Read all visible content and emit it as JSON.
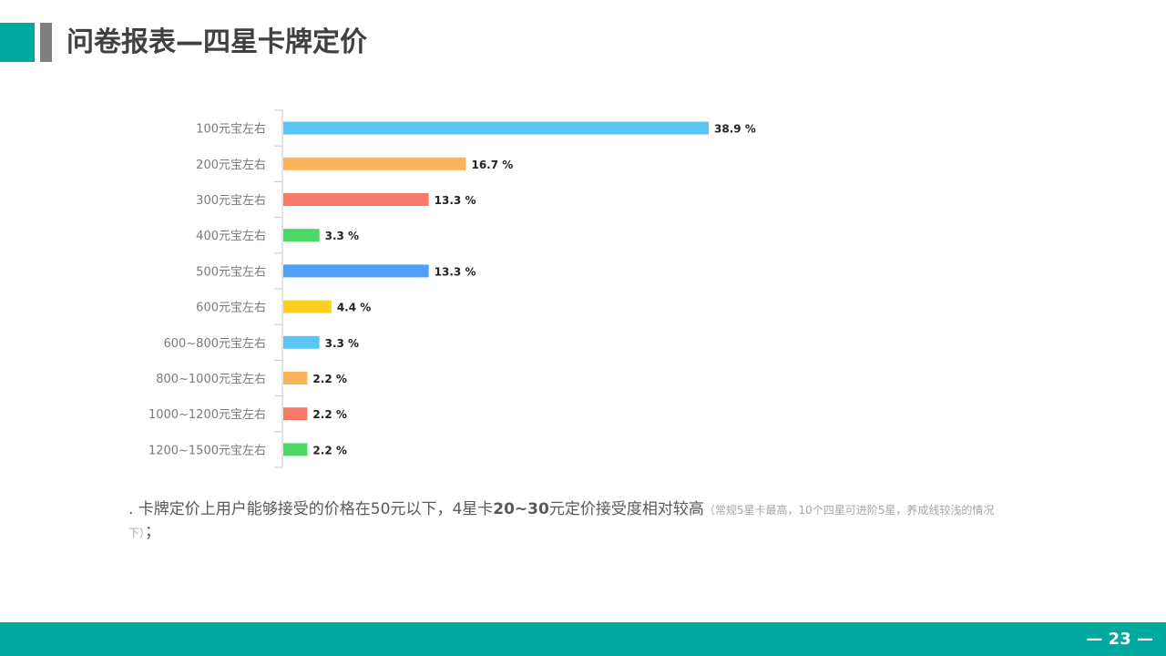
{
  "header": {
    "title": "问卷报表—四星卡牌定价"
  },
  "chart_data": {
    "type": "bar",
    "orientation": "horizontal",
    "categories": [
      "100元宝左右",
      "200元宝左右",
      "300元宝左右",
      "400元宝左右",
      "500元宝左右",
      "600元宝左右",
      "600~800元宝左右",
      "800~1000元宝左右",
      "1000~1200元宝左右",
      "1200~1500元宝左右"
    ],
    "values": [
      38.9,
      16.7,
      13.3,
      3.3,
      13.3,
      4.4,
      3.3,
      2.2,
      2.2,
      2.2
    ],
    "value_labels": [
      "38.9 %",
      "16.7 %",
      "13.3 %",
      "3.3 %",
      "13.3 %",
      "4.4 %",
      "3.3 %",
      "2.2 %",
      "2.2 %",
      "2.2 %"
    ],
    "colors": [
      "#5bc5f7",
      "#fbb35a",
      "#fa7a6a",
      "#4bd865",
      "#4fa0fb",
      "#fcd01f",
      "#5bc5f7",
      "#fbb35a",
      "#fa7a6a",
      "#4bd865"
    ],
    "xlim": [
      0,
      40
    ],
    "grid": false,
    "title": "",
    "xlabel": "",
    "ylabel": ""
  },
  "note": {
    "prefix": ". 卡牌定价上用户能够接受的价格在50元以下，4星卡",
    "bold": "20~30",
    "suffix": "元定价接受度相对较高",
    "small": "（常规5星卡最高，10个四星可进阶5星，养成线较浅的情况下）",
    "end": "；"
  },
  "footer": {
    "page_number": "— 23 —"
  },
  "colors": {
    "accent": "#00a99d",
    "title_marker_gray": "#7f7f7f",
    "title_text": "#404040"
  }
}
